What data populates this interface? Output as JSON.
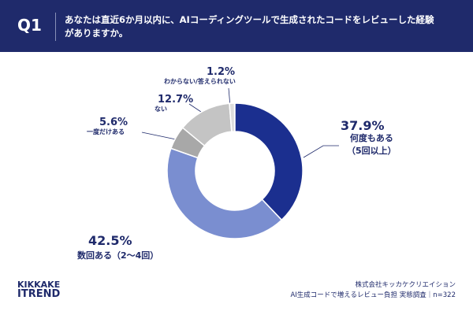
{
  "header": {
    "badge": "Q1",
    "title": "あなたは直近6か月以内に、AIコーディングツールで生成されたコードをレビューした経験がありますか。"
  },
  "chart_data": {
    "type": "pie",
    "categories": [
      "何度もある\n（5回以上）",
      "数回ある（2〜4回）",
      "一度だけある",
      "ない",
      "わからない/答えられない"
    ],
    "values": [
      37.9,
      42.5,
      5.6,
      12.7,
      1.2
    ],
    "value_labels": [
      "37.9%",
      "42.5%",
      "5.6%",
      "12.7%",
      "1.2%"
    ],
    "colors": [
      "#1b2f8f",
      "#7a8ed0",
      "#a8a8a8",
      "#c4c4c4",
      "#dcdcdc"
    ]
  },
  "logo": {
    "top": "KIKKAKE",
    "bottom": "ITREND"
  },
  "footer": {
    "company": "株式会社キッカケクリエイション",
    "survey": "AI生成コードで増えるレビュー負担 実態調査｜n=322"
  }
}
